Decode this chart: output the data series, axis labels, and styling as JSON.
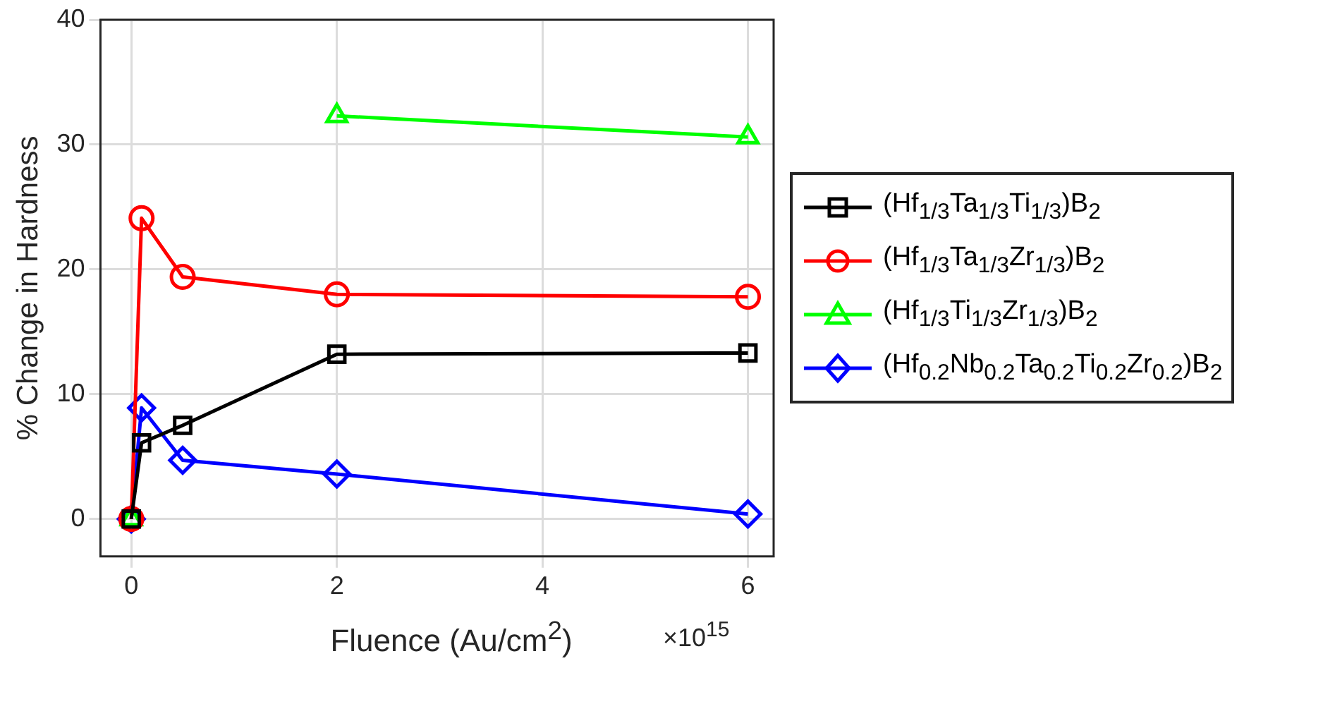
{
  "chart_data": {
    "type": "line",
    "xlabel": "Fluence (Au/cm$^{2}$)",
    "ylabel": "% Change in Hardness",
    "x": [
      0,
      0.1,
      0.5,
      2,
      6
    ],
    "series": [
      {
        "name": "(Hf$_{1/3}$Ta$_{1/3}$Ti$_{1/3}$)B$_{2}$",
        "color": "#000000",
        "marker": "square",
        "values": [
          0,
          6.1,
          7.5,
          13.2,
          13.3
        ]
      },
      {
        "name": "(Hf$_{1/3}$Ta$_{1/3}$Zr$_{1/3}$)B$_{2}$",
        "color": "#ff0000",
        "marker": "circle",
        "values": [
          0,
          24.1,
          19.4,
          18.0,
          17.8
        ]
      },
      {
        "name": "(Hf$_{1/3}$Ti$_{1/3}$Zr$_{1/3}$)B$_{2}$",
        "color": "#00ff00",
        "marker": "triangle",
        "values": [
          0,
          null,
          null,
          32.3,
          30.6
        ]
      },
      {
        "name": "(Hf$_{0.2}$Nb$_{0.2}$Ta$_{0.2}$Ti$_{0.2}$Zr$_{0.2}$)B$_{2}$",
        "color": "#0000ff",
        "marker": "diamond",
        "values": [
          0,
          8.9,
          4.7,
          3.6,
          0.4
        ]
      }
    ],
    "xlim": [
      -0.3,
      6.25
    ],
    "xticks": [
      0,
      2,
      4,
      6
    ],
    "ylim": [
      -3,
      40
    ],
    "yticks": [
      0,
      10,
      20,
      30,
      40
    ],
    "grid": true,
    "legend": "right",
    "line_style": "solid",
    "annotations": [
      "×10$^{15}$"
    ]
  }
}
